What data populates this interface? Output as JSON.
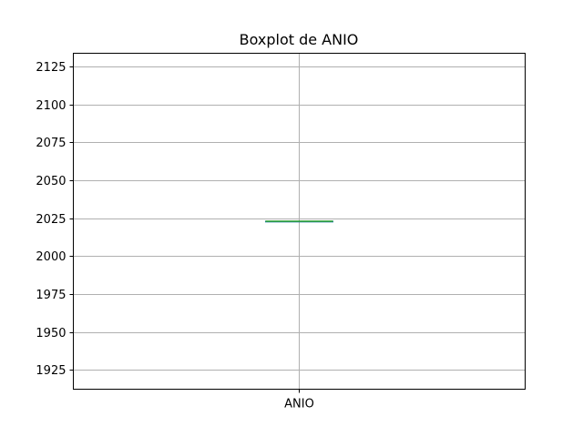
{
  "chart_data": {
    "type": "box",
    "title": "Boxplot de ANIO",
    "xlabel": "",
    "ylabel": "",
    "categories": [
      "ANIO"
    ],
    "series": [
      {
        "name": "ANIO",
        "whisker_low": 2023,
        "q1": 2023,
        "median": 2023,
        "q3": 2023,
        "whisker_high": 2023
      }
    ],
    "y_ticks": [
      1925,
      1950,
      1975,
      2000,
      2025,
      2050,
      2075,
      2100,
      2125
    ],
    "ylim": [
      1912.4,
      2133.6
    ],
    "grid": true,
    "colors": {
      "median": "#2ca02c",
      "box": "#1f77b4",
      "grid": "#b0b0b0",
      "axes": "#000000"
    }
  }
}
